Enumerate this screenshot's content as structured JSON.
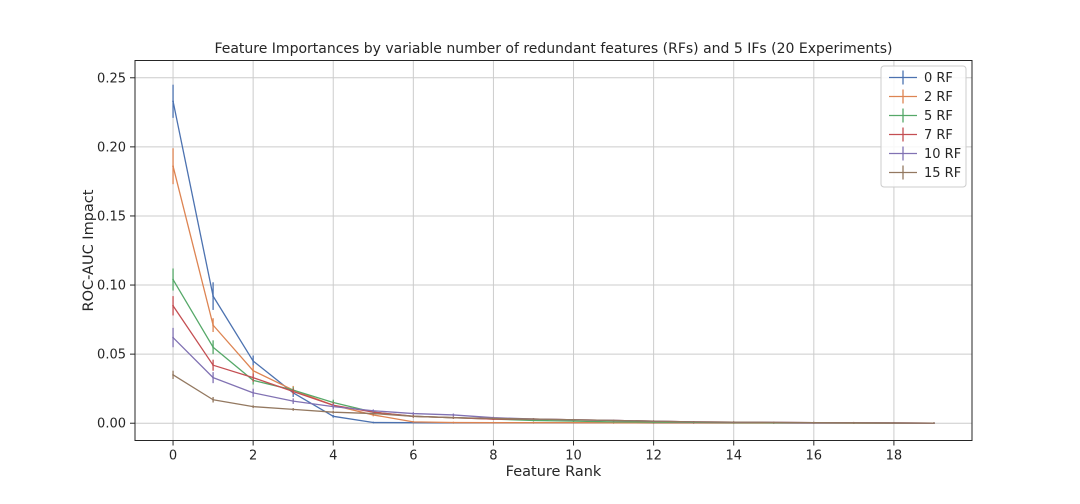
{
  "chart_data": {
    "type": "line",
    "title": "Feature Importances by variable number of redundant features (RFs) and 5 IFs (20 Experiments)",
    "xlabel": "Feature Rank",
    "ylabel": "ROC-AUC Impact",
    "xlim": [
      -0.95,
      19.95
    ],
    "ylim": [
      -0.0125,
      0.2625
    ],
    "xticks": [
      0,
      2,
      4,
      6,
      8,
      10,
      12,
      14,
      16,
      18
    ],
    "xtick_labels": [
      "0",
      "2",
      "4",
      "6",
      "8",
      "10",
      "12",
      "14",
      "16",
      "18"
    ],
    "yticks": [
      0.0,
      0.05,
      0.1,
      0.15,
      0.2,
      0.25
    ],
    "ytick_labels": [
      "0.00",
      "0.05",
      "0.10",
      "0.15",
      "0.20",
      "0.25"
    ],
    "grid": true,
    "legend_position": "top-right",
    "x": [
      0,
      1,
      2,
      3,
      4,
      5,
      6,
      7,
      8,
      9,
      10,
      11,
      12,
      13,
      14,
      15,
      16,
      17,
      18,
      19
    ],
    "series": [
      {
        "name": "0 RF",
        "color": "#4c72b0",
        "values": [
          0.233,
          0.092,
          0.045,
          0.022,
          0.005,
          0.0005,
          0.0004,
          0.0003,
          0.0003,
          0.0003,
          0.0003,
          0.0003,
          0.0002,
          0.0002,
          0.0002,
          0.0002,
          0.0001,
          0.0001,
          0.0001,
          0.0001
        ],
        "errors": [
          0.012,
          0.01,
          0.004,
          0.003,
          0.001,
          0.0002,
          0.0002,
          0.0002,
          0.0002,
          0.0002,
          0.0002,
          0.0002,
          0.0001,
          0.0001,
          0.0001,
          0.0001,
          0.0001,
          0.0001,
          0.0001,
          0.0001
        ]
      },
      {
        "name": "2 RF",
        "color": "#dd8452",
        "values": [
          0.186,
          0.071,
          0.038,
          0.024,
          0.013,
          0.006,
          0.001,
          0.0005,
          0.0004,
          0.0004,
          0.0004,
          0.0003,
          0.0003,
          0.0003,
          0.0002,
          0.0002,
          0.0002,
          0.0001,
          0.0001,
          0.0001
        ],
        "errors": [
          0.013,
          0.005,
          0.004,
          0.003,
          0.002,
          0.001,
          0.0005,
          0.0002,
          0.0002,
          0.0002,
          0.0002,
          0.0002,
          0.0001,
          0.0001,
          0.0001,
          0.0001,
          0.0001,
          0.0001,
          0.0001,
          0.0001
        ]
      },
      {
        "name": "5 RF",
        "color": "#55a868",
        "values": [
          0.104,
          0.055,
          0.031,
          0.024,
          0.015,
          0.008,
          0.005,
          0.004,
          0.003,
          0.002,
          0.0015,
          0.001,
          0.0008,
          0.0006,
          0.0005,
          0.0004,
          0.0003,
          0.0002,
          0.0001,
          0.0001
        ],
        "errors": [
          0.008,
          0.005,
          0.003,
          0.002,
          0.002,
          0.001,
          0.001,
          0.0008,
          0.0006,
          0.0005,
          0.0004,
          0.0003,
          0.0002,
          0.0002,
          0.0002,
          0.0001,
          0.0001,
          0.0001,
          0.0001,
          0.0001
        ]
      },
      {
        "name": "7 RF",
        "color": "#c44e52",
        "values": [
          0.085,
          0.042,
          0.033,
          0.023,
          0.013,
          0.008,
          0.005,
          0.004,
          0.003,
          0.003,
          0.0025,
          0.002,
          0.0015,
          0.001,
          0.0008,
          0.0006,
          0.0004,
          0.0003,
          0.0002,
          0.0001
        ],
        "errors": [
          0.007,
          0.004,
          0.003,
          0.002,
          0.002,
          0.001,
          0.001,
          0.0008,
          0.0006,
          0.0005,
          0.0004,
          0.0003,
          0.0002,
          0.0002,
          0.0002,
          0.0001,
          0.0001,
          0.0001,
          0.0001,
          0.0001
        ]
      },
      {
        "name": "10 RF",
        "color": "#8172b3",
        "values": [
          0.062,
          0.033,
          0.022,
          0.016,
          0.012,
          0.009,
          0.007,
          0.006,
          0.004,
          0.003,
          0.0025,
          0.002,
          0.0015,
          0.001,
          0.0008,
          0.0006,
          0.0004,
          0.0003,
          0.0002,
          0.0001
        ],
        "errors": [
          0.007,
          0.004,
          0.003,
          0.002,
          0.002,
          0.001,
          0.001,
          0.001,
          0.0006,
          0.0005,
          0.0004,
          0.0003,
          0.0002,
          0.0002,
          0.0002,
          0.0001,
          0.0001,
          0.0001,
          0.0001,
          0.0001
        ]
      },
      {
        "name": "15 RF",
        "color": "#937860",
        "values": [
          0.035,
          0.017,
          0.012,
          0.01,
          0.008,
          0.007,
          0.005,
          0.004,
          0.0035,
          0.003,
          0.0025,
          0.002,
          0.0015,
          0.001,
          0.0008,
          0.0006,
          0.0004,
          0.0003,
          0.0002,
          0.0001
        ],
        "errors": [
          0.003,
          0.002,
          0.001,
          0.001,
          0.001,
          0.0008,
          0.0006,
          0.0005,
          0.0004,
          0.0003,
          0.0003,
          0.0002,
          0.0002,
          0.0001,
          0.0001,
          0.0001,
          0.0001,
          0.0001,
          0.0001,
          0.0001
        ]
      }
    ]
  }
}
